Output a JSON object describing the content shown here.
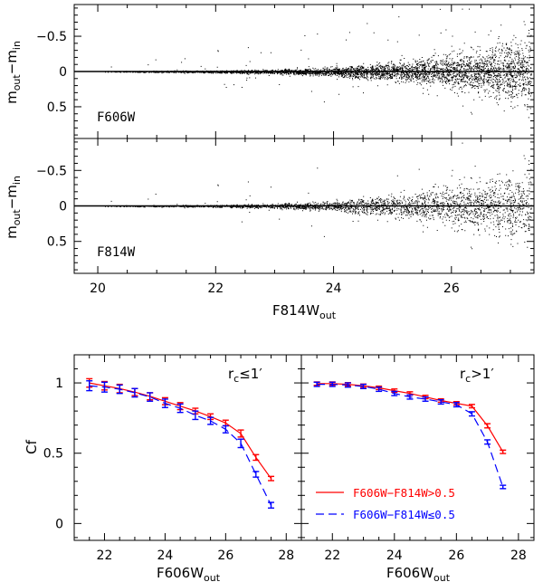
{
  "chart_data": [
    {
      "type": "scatter",
      "panel": "top",
      "band_label": "F606W",
      "ylabel_main": "m",
      "ylabel_sub1": "out",
      "ylabel_mid": "−m",
      "ylabel_sub2": "in",
      "xlim": [
        19.6,
        27.4
      ],
      "ylim": [
        0.95,
        -0.95
      ],
      "yticks": [
        -0.5,
        0,
        0.5
      ],
      "ytick_labels": [
        "−0.5",
        "0",
        "0.5"
      ],
      "xticks": [
        20,
        22,
        24,
        26
      ],
      "spread_model": {
        "mag": [
          20,
          22,
          23,
          24,
          25,
          26,
          27,
          27.4
        ],
        "sigma": [
          0.003,
          0.008,
          0.015,
          0.03,
          0.06,
          0.11,
          0.2,
          0.25
        ]
      }
    },
    {
      "type": "scatter",
      "panel": "bottom",
      "band_label": "F814W",
      "ylabel_main": "m",
      "ylabel_sub1": "out",
      "ylabel_mid": "−m",
      "ylabel_sub2": "in",
      "xlim": [
        19.6,
        27.4
      ],
      "ylim": [
        0.95,
        -0.95
      ],
      "yticks": [
        -0.5,
        0,
        0.5
      ],
      "ytick_labels": [
        "−0.5",
        "0",
        "0.5"
      ],
      "xticks": [
        20,
        22,
        24,
        26
      ],
      "xtick_labels": [
        "20",
        "22",
        "24",
        "26"
      ],
      "xlabel_main": "F814W",
      "xlabel_sub": "out",
      "spread_model": {
        "mag": [
          20,
          22,
          23,
          24,
          25,
          26,
          27,
          27.4
        ],
        "sigma": [
          0.003,
          0.008,
          0.016,
          0.035,
          0.07,
          0.13,
          0.22,
          0.27
        ]
      }
    },
    {
      "type": "line",
      "panel": "completeness-inner",
      "title": "r",
      "title_sub": "c",
      "title_rest": "≤1′",
      "ylabel": "Cf",
      "xlabel_main": "F606W",
      "xlabel_sub": "out",
      "xlim": [
        21.0,
        28.5
      ],
      "ylim": [
        -0.12,
        1.2
      ],
      "xticks": [
        22,
        24,
        26,
        28
      ],
      "xtick_labels": [
        "22",
        "24",
        "26",
        "28"
      ],
      "yticks": [
        0,
        0.5,
        1
      ],
      "ytick_labels": [
        "0",
        "0.5",
        "1"
      ],
      "series": [
        {
          "name": "F606W−F814W>0.5",
          "color": "#ff0000",
          "x": [
            21.5,
            22.0,
            22.5,
            23.0,
            23.5,
            24.0,
            24.5,
            25.0,
            25.5,
            26.0,
            26.5,
            27.0,
            27.5
          ],
          "y": [
            1.0,
            0.98,
            0.96,
            0.935,
            0.905,
            0.87,
            0.835,
            0.8,
            0.76,
            0.715,
            0.64,
            0.47,
            0.32
          ],
          "err": [
            0.03,
            0.03,
            0.03,
            0.025,
            0.025,
            0.025,
            0.025,
            0.02,
            0.02,
            0.02,
            0.025,
            0.02,
            0.015
          ]
        },
        {
          "name": "F606W−F814W≤0.5",
          "color": "#0000ff",
          "x": [
            21.5,
            22.0,
            22.5,
            23.0,
            23.5,
            24.0,
            24.5,
            25.0,
            25.5,
            26.0,
            26.5,
            27.0,
            27.5
          ],
          "y": [
            0.98,
            0.97,
            0.955,
            0.93,
            0.9,
            0.855,
            0.82,
            0.77,
            0.73,
            0.67,
            0.57,
            0.35,
            0.13
          ],
          "err": [
            0.035,
            0.035,
            0.03,
            0.03,
            0.03,
            0.03,
            0.03,
            0.03,
            0.025,
            0.025,
            0.03,
            0.02,
            0.02
          ]
        }
      ]
    },
    {
      "type": "line",
      "panel": "completeness-outer",
      "title": "r",
      "title_sub": "c",
      "title_rest": ">1′",
      "xlabel_main": "F606W",
      "xlabel_sub": "out",
      "xlim": [
        21.0,
        28.5
      ],
      "ylim": [
        -0.12,
        1.2
      ],
      "xticks": [
        22,
        24,
        26,
        28
      ],
      "xtick_labels": [
        "22",
        "24",
        "26",
        "28"
      ],
      "legend": [
        {
          "label": "F606W−F814W>0.5",
          "color": "#ff0000",
          "style": "solid"
        },
        {
          "label": "F606W−F814W≤0.5",
          "color": "#0000ff",
          "style": "dashed"
        }
      ],
      "series": [
        {
          "name": "F606W−F814W>0.5",
          "color": "#ff0000",
          "x": [
            21.5,
            22.0,
            22.5,
            23.0,
            23.5,
            24.0,
            24.5,
            25.0,
            25.5,
            26.0,
            26.5,
            27.0,
            27.5
          ],
          "y": [
            0.995,
            0.995,
            0.99,
            0.98,
            0.965,
            0.945,
            0.925,
            0.9,
            0.875,
            0.855,
            0.835,
            0.695,
            0.51
          ],
          "err": [
            0.012,
            0.012,
            0.012,
            0.012,
            0.012,
            0.012,
            0.012,
            0.012,
            0.012,
            0.012,
            0.012,
            0.015,
            0.012
          ]
        },
        {
          "name": "F606W−F814W≤0.5",
          "color": "#0000ff",
          "x": [
            21.5,
            22.0,
            22.5,
            23.0,
            23.5,
            24.0,
            24.5,
            25.0,
            25.5,
            26.0,
            26.5,
            27.0,
            27.5
          ],
          "y": [
            0.99,
            0.99,
            0.985,
            0.975,
            0.955,
            0.925,
            0.9,
            0.885,
            0.865,
            0.845,
            0.78,
            0.58,
            0.26
          ],
          "err": [
            0.015,
            0.015,
            0.015,
            0.015,
            0.015,
            0.015,
            0.015,
            0.015,
            0.015,
            0.015,
            0.015,
            0.015,
            0.012
          ]
        }
      ]
    }
  ]
}
